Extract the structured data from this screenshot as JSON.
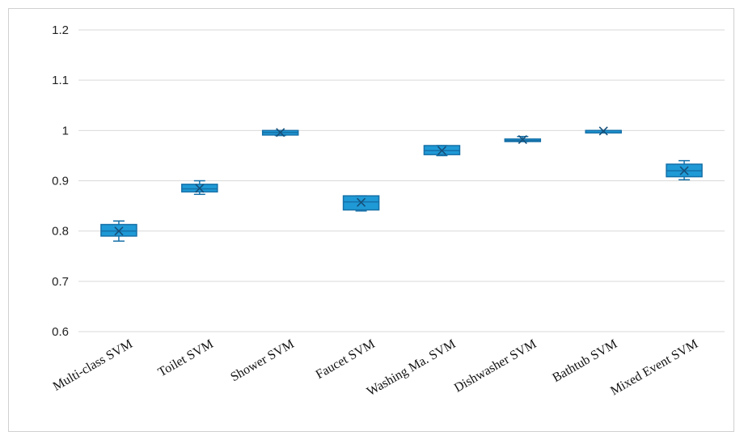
{
  "chart_data": {
    "type": "boxplot",
    "title": "",
    "xlabel": "",
    "ylabel": "",
    "ylim": [
      0.6,
      1.2
    ],
    "yticks": [
      "0.6",
      "0.7",
      "0.8",
      "0.9",
      "1",
      "1.1",
      "1.2"
    ],
    "grid": true,
    "colors": {
      "box_fill": "#1f9ad6",
      "box_stroke": "#1670a8",
      "grid": "#d9d9d9"
    },
    "categories": [
      "Multi-class SVM",
      "Toilet SVM",
      "Shower SVM",
      "Faucet SVM",
      "Washing Ma. SVM",
      "Dishwasher SVM",
      "Bathtub SVM",
      "Mixed Event SVM"
    ],
    "boxes": [
      {
        "min": 0.78,
        "q1": 0.79,
        "median": 0.8,
        "q3": 0.813,
        "max": 0.82,
        "mean": 0.8
      },
      {
        "min": 0.873,
        "q1": 0.878,
        "median": 0.884,
        "q3": 0.893,
        "max": 0.9,
        "mean": 0.885
      },
      {
        "min": 0.99,
        "q1": 0.991,
        "median": 0.996,
        "q3": 1.0,
        "max": 1.0,
        "mean": 0.996
      },
      {
        "min": 0.84,
        "q1": 0.842,
        "median": 0.858,
        "q3": 0.87,
        "max": 0.87,
        "mean": 0.857
      },
      {
        "min": 0.95,
        "q1": 0.952,
        "median": 0.96,
        "q3": 0.97,
        "max": 0.97,
        "mean": 0.96
      },
      {
        "min": 0.978,
        "q1": 0.978,
        "median": 0.98,
        "q3": 0.983,
        "max": 0.988,
        "mean": 0.982
      },
      {
        "min": 0.999,
        "q1": 0.999,
        "median": 1.0,
        "q3": 1.0,
        "max": 1.0,
        "mean": 0.999
      },
      {
        "min": 0.902,
        "q1": 0.908,
        "median": 0.92,
        "q3": 0.933,
        "max": 0.94,
        "mean": 0.92
      }
    ]
  }
}
